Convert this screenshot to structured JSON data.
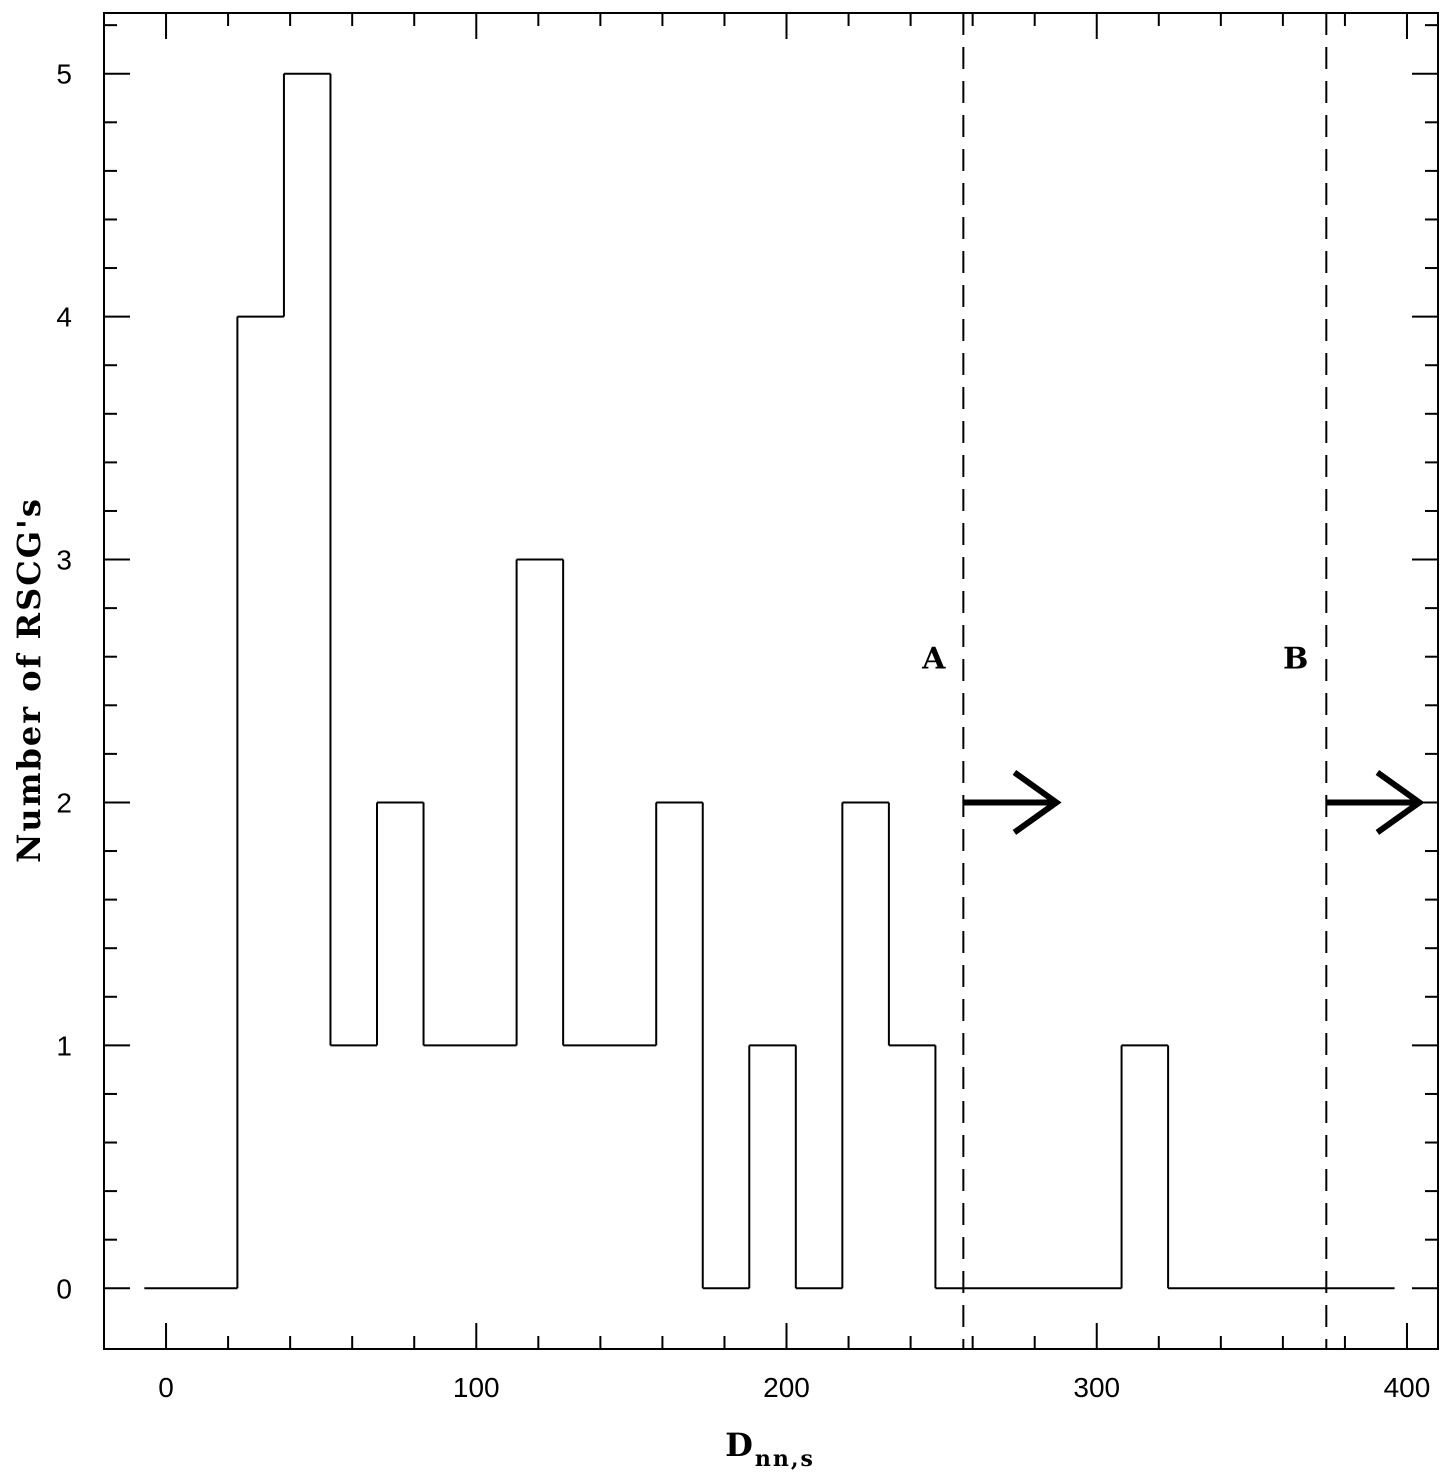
{
  "chart_data": {
    "type": "histogram",
    "xlabel": {
      "main": "D",
      "sub": "nn,s"
    },
    "ylabel": "Number of RSCG's",
    "xlim": [
      -20,
      410
    ],
    "ylim": [
      -0.25,
      5.25
    ],
    "x_ticks": [
      0,
      100,
      200,
      300,
      400
    ],
    "x_tick_labels": [
      "0",
      "100",
      "200",
      "300",
      "400"
    ],
    "y_ticks": [
      0,
      1,
      2,
      3,
      4,
      5
    ],
    "y_tick_labels": [
      "0",
      "1",
      "2",
      "3",
      "4",
      "5"
    ],
    "x_minor_step": 20,
    "y_minor_step": 0.2,
    "grid": false,
    "series": [
      {
        "bins": [
          {
            "x0": -7,
            "x1": 23,
            "count": 0
          },
          {
            "x0": 23,
            "x1": 38,
            "count": 4
          },
          {
            "x0": 38,
            "x1": 53,
            "count": 5
          },
          {
            "x0": 53,
            "x1": 68,
            "count": 1
          },
          {
            "x0": 68,
            "x1": 83,
            "count": 2
          },
          {
            "x0": 83,
            "x1": 113,
            "count": 1
          },
          {
            "x0": 113,
            "x1": 128,
            "count": 3
          },
          {
            "x0": 128,
            "x1": 158,
            "count": 1
          },
          {
            "x0": 158,
            "x1": 173,
            "count": 2
          },
          {
            "x0": 173,
            "x1": 188,
            "count": 0
          },
          {
            "x0": 188,
            "x1": 203,
            "count": 1
          },
          {
            "x0": 203,
            "x1": 218,
            "count": 0
          },
          {
            "x0": 218,
            "x1": 233,
            "count": 2
          },
          {
            "x0": 233,
            "x1": 248,
            "count": 1
          },
          {
            "x0": 248,
            "x1": 308,
            "count": 0
          },
          {
            "x0": 308,
            "x1": 323,
            "count": 1
          },
          {
            "x0": 323,
            "x1": 396,
            "count": 0
          }
        ]
      }
    ],
    "annotations": [
      {
        "label": "A",
        "x": 257,
        "y_label": 2.6,
        "arrow_y": 2,
        "arrow_to_x": 287
      },
      {
        "label": "B",
        "x": 374,
        "y_label": 2.6,
        "arrow_y": 2,
        "arrow_to_x": 404
      }
    ]
  },
  "colors": {
    "line": "#000000",
    "background": "#ffffff"
  }
}
